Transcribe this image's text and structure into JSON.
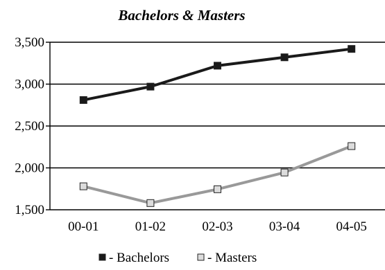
{
  "chart_data": {
    "type": "line",
    "title": "Bachelors & Masters",
    "xlabel": "",
    "ylabel": "",
    "categories": [
      "00-01",
      "01-02",
      "02-03",
      "03-04",
      "04-05"
    ],
    "ylim": [
      1500,
      3500
    ],
    "yticks": [
      1500,
      2000,
      2500,
      3000,
      3500
    ],
    "ytick_labels": [
      "1,500",
      "2,000",
      "2,500",
      "3,000",
      "3,500"
    ],
    "grid": true,
    "legend_position": "bottom",
    "series": [
      {
        "name": "Bachelors",
        "legend_label": "- Bachelors",
        "color": "#1a1a1a",
        "marker_fill": "#1a1a1a",
        "values": [
          2810,
          2970,
          3220,
          3320,
          3420
        ]
      },
      {
        "name": "Masters",
        "legend_label": "- Masters",
        "color": "#999999",
        "marker_fill": "#dcdcdc",
        "values": [
          1780,
          1580,
          1745,
          1945,
          2260
        ]
      }
    ]
  }
}
